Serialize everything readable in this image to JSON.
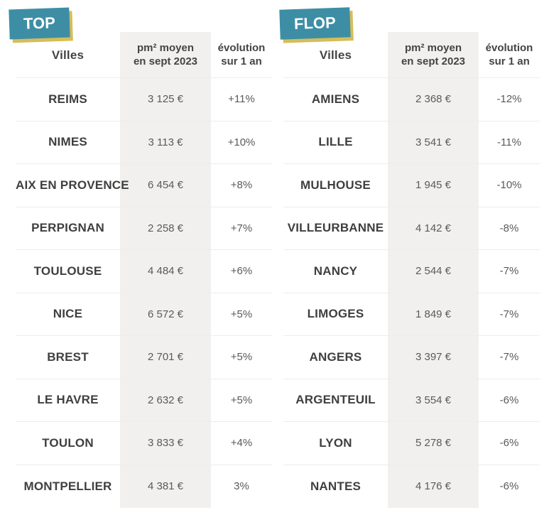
{
  "top": {
    "tag": "TOP",
    "headers": {
      "city": "Villes",
      "price_line1": "pm² moyen",
      "price_line2": "en sept 2023",
      "evo_line1": "évolution",
      "evo_line2": "sur 1 an"
    },
    "rows": [
      {
        "city": "REIMS",
        "price": "3 125 €",
        "evolution": "+11%"
      },
      {
        "city": "NIMES",
        "price": "3 113 €",
        "evolution": "+10%"
      },
      {
        "city": "AIX EN PROVENCE",
        "price": "6 454 €",
        "evolution": "+8%"
      },
      {
        "city": "PERPIGNAN",
        "price": "2 258 €",
        "evolution": "+7%"
      },
      {
        "city": "TOULOUSE",
        "price": "4 484 €",
        "evolution": "+6%"
      },
      {
        "city": "NICE",
        "price": "6 572 €",
        "evolution": "+5%"
      },
      {
        "city": "BREST",
        "price": "2 701 €",
        "evolution": "+5%"
      },
      {
        "city": "LE HAVRE",
        "price": "2 632 €",
        "evolution": "+5%"
      },
      {
        "city": "TOULON",
        "price": "3 833 €",
        "evolution": "+4%"
      },
      {
        "city": "MONTPELLIER",
        "price": "4 381 €",
        "evolution": "3%"
      }
    ]
  },
  "flop": {
    "tag": "FLOP",
    "headers": {
      "city": "Villes",
      "price_line1": "pm² moyen",
      "price_line2": "en sept 2023",
      "evo_line1": "évolution",
      "evo_line2": "sur 1 an"
    },
    "rows": [
      {
        "city": "AMIENS",
        "price": "2 368 €",
        "evolution": "-12%"
      },
      {
        "city": "LILLE",
        "price": "3 541 €",
        "evolution": "-11%"
      },
      {
        "city": "MULHOUSE",
        "price": "1 945 €",
        "evolution": "-10%"
      },
      {
        "city": "VILLEURBANNE",
        "price": "4 142 €",
        "evolution": "-8%"
      },
      {
        "city": "NANCY",
        "price": "2 544 €",
        "evolution": "-7%"
      },
      {
        "city": "LIMOGES",
        "price": "1 849 €",
        "evolution": "-7%"
      },
      {
        "city": "ANGERS",
        "price": "3 397 €",
        "evolution": "-7%"
      },
      {
        "city": "ARGENTEUIL",
        "price": "3 554 €",
        "evolution": "-6%"
      },
      {
        "city": "LYON",
        "price": "5 278 €",
        "evolution": "-6%"
      },
      {
        "city": "NANTES",
        "price": "4 176 €",
        "evolution": "-6%"
      }
    ]
  },
  "colors": {
    "tag_bg": "#3d8ea5",
    "tag_shadow": "#d6bd5a",
    "price_column_bg": "#f1f0ef"
  }
}
